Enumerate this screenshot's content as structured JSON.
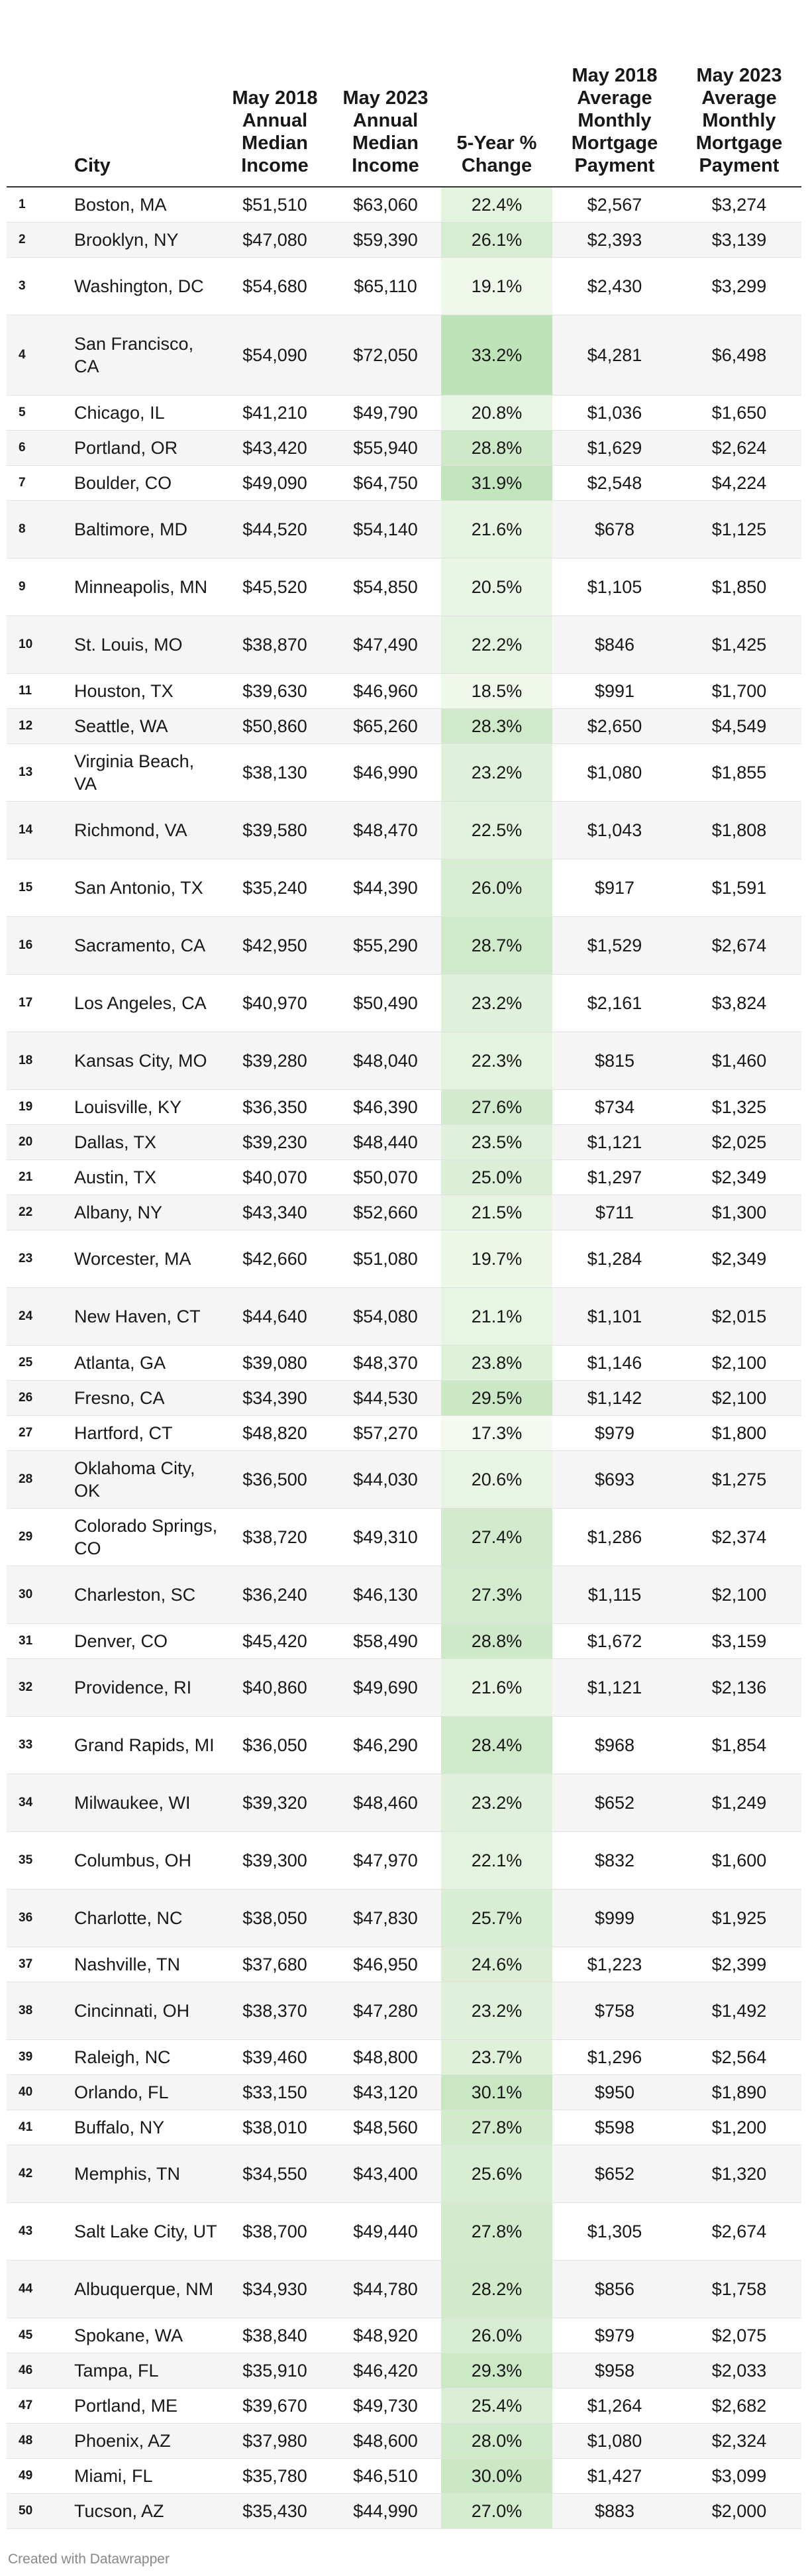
{
  "headers": {
    "rank": "",
    "city": "City",
    "income_2018": "May 2018 Annual Median Income",
    "income_2023": "May 2023 Annual Median Income",
    "change": "5-Year % Change",
    "mortgage_2018": "May 2018 Average Monthly Mortgage Payment",
    "mortgage_2023": "May 2023 Average Monthly Mortgage Payment"
  },
  "colors": {
    "heat_low": "#f4faf0",
    "heat_high": "#bfe3b8",
    "row_stripe": "#f5f5f5",
    "header_rule": "#333333"
  },
  "rows": [
    {
      "rank": "1",
      "city": "Boston, MA",
      "income_2018": "$51,510",
      "income_2023": "$63,060",
      "change": "22.4%",
      "change_value": 22.4,
      "mortgage_2018": "$2,567",
      "mortgage_2023": "$3,274"
    },
    {
      "rank": "2",
      "city": "Brooklyn, NY",
      "income_2018": "$47,080",
      "income_2023": "$59,390",
      "change": "26.1%",
      "change_value": 26.1,
      "mortgage_2018": "$2,393",
      "mortgage_2023": "$3,139"
    },
    {
      "rank": "3",
      "city": "Washington, DC",
      "income_2018": "$54,680",
      "income_2023": "$65,110",
      "change": "19.1%",
      "change_value": 19.1,
      "mortgage_2018": "$2,430",
      "mortgage_2023": "$3,299"
    },
    {
      "rank": "4",
      "city": "San Francisco, CA",
      "income_2018": "$54,090",
      "income_2023": "$72,050",
      "change": "33.2%",
      "change_value": 33.2,
      "mortgage_2018": "$4,281",
      "mortgage_2023": "$6,498"
    },
    {
      "rank": "5",
      "city": "Chicago, IL",
      "income_2018": "$41,210",
      "income_2023": "$49,790",
      "change": "20.8%",
      "change_value": 20.8,
      "mortgage_2018": "$1,036",
      "mortgage_2023": "$1,650"
    },
    {
      "rank": "6",
      "city": "Portland, OR",
      "income_2018": "$43,420",
      "income_2023": "$55,940",
      "change": "28.8%",
      "change_value": 28.8,
      "mortgage_2018": "$1,629",
      "mortgage_2023": "$2,624"
    },
    {
      "rank": "7",
      "city": "Boulder, CO",
      "income_2018": "$49,090",
      "income_2023": "$64,750",
      "change": "31.9%",
      "change_value": 31.9,
      "mortgage_2018": "$2,548",
      "mortgage_2023": "$4,224"
    },
    {
      "rank": "8",
      "city": "Baltimore, MD",
      "income_2018": "$44,520",
      "income_2023": "$54,140",
      "change": "21.6%",
      "change_value": 21.6,
      "mortgage_2018": "$678",
      "mortgage_2023": "$1,125"
    },
    {
      "rank": "9",
      "city": "Minneapolis, MN",
      "income_2018": "$45,520",
      "income_2023": "$54,850",
      "change": "20.5%",
      "change_value": 20.5,
      "mortgage_2018": "$1,105",
      "mortgage_2023": "$1,850"
    },
    {
      "rank": "10",
      "city": "St. Louis, MO",
      "income_2018": "$38,870",
      "income_2023": "$47,490",
      "change": "22.2%",
      "change_value": 22.2,
      "mortgage_2018": "$846",
      "mortgage_2023": "$1,425"
    },
    {
      "rank": "11",
      "city": "Houston, TX",
      "income_2018": "$39,630",
      "income_2023": "$46,960",
      "change": "18.5%",
      "change_value": 18.5,
      "mortgage_2018": "$991",
      "mortgage_2023": "$1,700"
    },
    {
      "rank": "12",
      "city": "Seattle, WA",
      "income_2018": "$50,860",
      "income_2023": "$65,260",
      "change": "28.3%",
      "change_value": 28.3,
      "mortgage_2018": "$2,650",
      "mortgage_2023": "$4,549"
    },
    {
      "rank": "13",
      "city": "Virginia Beach, VA",
      "income_2018": "$38,130",
      "income_2023": "$46,990",
      "change": "23.2%",
      "change_value": 23.2,
      "mortgage_2018": "$1,080",
      "mortgage_2023": "$1,855"
    },
    {
      "rank": "14",
      "city": "Richmond, VA",
      "income_2018": "$39,580",
      "income_2023": "$48,470",
      "change": "22.5%",
      "change_value": 22.5,
      "mortgage_2018": "$1,043",
      "mortgage_2023": "$1,808"
    },
    {
      "rank": "15",
      "city": "San Antonio, TX",
      "income_2018": "$35,240",
      "income_2023": "$44,390",
      "change": "26.0%",
      "change_value": 26.0,
      "mortgage_2018": "$917",
      "mortgage_2023": "$1,591"
    },
    {
      "rank": "16",
      "city": "Sacramento, CA",
      "income_2018": "$42,950",
      "income_2023": "$55,290",
      "change": "28.7%",
      "change_value": 28.7,
      "mortgage_2018": "$1,529",
      "mortgage_2023": "$2,674"
    },
    {
      "rank": "17",
      "city": "Los Angeles, CA",
      "income_2018": "$40,970",
      "income_2023": "$50,490",
      "change": "23.2%",
      "change_value": 23.2,
      "mortgage_2018": "$2,161",
      "mortgage_2023": "$3,824"
    },
    {
      "rank": "18",
      "city": "Kansas City, MO",
      "income_2018": "$39,280",
      "income_2023": "$48,040",
      "change": "22.3%",
      "change_value": 22.3,
      "mortgage_2018": "$815",
      "mortgage_2023": "$1,460"
    },
    {
      "rank": "19",
      "city": "Louisville, KY",
      "income_2018": "$36,350",
      "income_2023": "$46,390",
      "change": "27.6%",
      "change_value": 27.6,
      "mortgage_2018": "$734",
      "mortgage_2023": "$1,325"
    },
    {
      "rank": "20",
      "city": "Dallas, TX",
      "income_2018": "$39,230",
      "income_2023": "$48,440",
      "change": "23.5%",
      "change_value": 23.5,
      "mortgage_2018": "$1,121",
      "mortgage_2023": "$2,025"
    },
    {
      "rank": "21",
      "city": "Austin, TX",
      "income_2018": "$40,070",
      "income_2023": "$50,070",
      "change": "25.0%",
      "change_value": 25.0,
      "mortgage_2018": "$1,297",
      "mortgage_2023": "$2,349"
    },
    {
      "rank": "22",
      "city": "Albany, NY",
      "income_2018": "$43,340",
      "income_2023": "$52,660",
      "change": "21.5%",
      "change_value": 21.5,
      "mortgage_2018": "$711",
      "mortgage_2023": "$1,300"
    },
    {
      "rank": "23",
      "city": "Worcester, MA",
      "income_2018": "$42,660",
      "income_2023": "$51,080",
      "change": "19.7%",
      "change_value": 19.7,
      "mortgage_2018": "$1,284",
      "mortgage_2023": "$2,349"
    },
    {
      "rank": "24",
      "city": "New Haven, CT",
      "income_2018": "$44,640",
      "income_2023": "$54,080",
      "change": "21.1%",
      "change_value": 21.1,
      "mortgage_2018": "$1,101",
      "mortgage_2023": "$2,015"
    },
    {
      "rank": "25",
      "city": "Atlanta, GA",
      "income_2018": "$39,080",
      "income_2023": "$48,370",
      "change": "23.8%",
      "change_value": 23.8,
      "mortgage_2018": "$1,146",
      "mortgage_2023": "$2,100"
    },
    {
      "rank": "26",
      "city": "Fresno, CA",
      "income_2018": "$34,390",
      "income_2023": "$44,530",
      "change": "29.5%",
      "change_value": 29.5,
      "mortgage_2018": "$1,142",
      "mortgage_2023": "$2,100"
    },
    {
      "rank": "27",
      "city": "Hartford, CT",
      "income_2018": "$48,820",
      "income_2023": "$57,270",
      "change": "17.3%",
      "change_value": 17.3,
      "mortgage_2018": "$979",
      "mortgage_2023": "$1,800"
    },
    {
      "rank": "28",
      "city": "Oklahoma City, OK",
      "income_2018": "$36,500",
      "income_2023": "$44,030",
      "change": "20.6%",
      "change_value": 20.6,
      "mortgage_2018": "$693",
      "mortgage_2023": "$1,275"
    },
    {
      "rank": "29",
      "city": "Colorado Springs, CO",
      "income_2018": "$38,720",
      "income_2023": "$49,310",
      "change": "27.4%",
      "change_value": 27.4,
      "mortgage_2018": "$1,286",
      "mortgage_2023": "$2,374"
    },
    {
      "rank": "30",
      "city": "Charleston, SC",
      "income_2018": "$36,240",
      "income_2023": "$46,130",
      "change": "27.3%",
      "change_value": 27.3,
      "mortgage_2018": "$1,115",
      "mortgage_2023": "$2,100"
    },
    {
      "rank": "31",
      "city": "Denver, CO",
      "income_2018": "$45,420",
      "income_2023": "$58,490",
      "change": "28.8%",
      "change_value": 28.8,
      "mortgage_2018": "$1,672",
      "mortgage_2023": "$3,159"
    },
    {
      "rank": "32",
      "city": "Providence, RI",
      "income_2018": "$40,860",
      "income_2023": "$49,690",
      "change": "21.6%",
      "change_value": 21.6,
      "mortgage_2018": "$1,121",
      "mortgage_2023": "$2,136"
    },
    {
      "rank": "33",
      "city": "Grand Rapids, MI",
      "income_2018": "$36,050",
      "income_2023": "$46,290",
      "change": "28.4%",
      "change_value": 28.4,
      "mortgage_2018": "$968",
      "mortgage_2023": "$1,854"
    },
    {
      "rank": "34",
      "city": "Milwaukee, WI",
      "income_2018": "$39,320",
      "income_2023": "$48,460",
      "change": "23.2%",
      "change_value": 23.2,
      "mortgage_2018": "$652",
      "mortgage_2023": "$1,249"
    },
    {
      "rank": "35",
      "city": "Columbus, OH",
      "income_2018": "$39,300",
      "income_2023": "$47,970",
      "change": "22.1%",
      "change_value": 22.1,
      "mortgage_2018": "$832",
      "mortgage_2023": "$1,600"
    },
    {
      "rank": "36",
      "city": "Charlotte, NC",
      "income_2018": "$38,050",
      "income_2023": "$47,830",
      "change": "25.7%",
      "change_value": 25.7,
      "mortgage_2018": "$999",
      "mortgage_2023": "$1,925"
    },
    {
      "rank": "37",
      "city": "Nashville, TN",
      "income_2018": "$37,680",
      "income_2023": "$46,950",
      "change": "24.6%",
      "change_value": 24.6,
      "mortgage_2018": "$1,223",
      "mortgage_2023": "$2,399"
    },
    {
      "rank": "38",
      "city": "Cincinnati, OH",
      "income_2018": "$38,370",
      "income_2023": "$47,280",
      "change": "23.2%",
      "change_value": 23.2,
      "mortgage_2018": "$758",
      "mortgage_2023": "$1,492"
    },
    {
      "rank": "39",
      "city": "Raleigh, NC",
      "income_2018": "$39,460",
      "income_2023": "$48,800",
      "change": "23.7%",
      "change_value": 23.7,
      "mortgage_2018": "$1,296",
      "mortgage_2023": "$2,564"
    },
    {
      "rank": "40",
      "city": "Orlando, FL",
      "income_2018": "$33,150",
      "income_2023": "$43,120",
      "change": "30.1%",
      "change_value": 30.1,
      "mortgage_2018": "$950",
      "mortgage_2023": "$1,890"
    },
    {
      "rank": "41",
      "city": "Buffalo, NY",
      "income_2018": "$38,010",
      "income_2023": "$48,560",
      "change": "27.8%",
      "change_value": 27.8,
      "mortgage_2018": "$598",
      "mortgage_2023": "$1,200"
    },
    {
      "rank": "42",
      "city": "Memphis, TN",
      "income_2018": "$34,550",
      "income_2023": "$43,400",
      "change": "25.6%",
      "change_value": 25.6,
      "mortgage_2018": "$652",
      "mortgage_2023": "$1,320"
    },
    {
      "rank": "43",
      "city": "Salt Lake City, UT",
      "income_2018": "$38,700",
      "income_2023": "$49,440",
      "change": "27.8%",
      "change_value": 27.8,
      "mortgage_2018": "$1,305",
      "mortgage_2023": "$2,674"
    },
    {
      "rank": "44",
      "city": "Albuquerque, NM",
      "income_2018": "$34,930",
      "income_2023": "$44,780",
      "change": "28.2%",
      "change_value": 28.2,
      "mortgage_2018": "$856",
      "mortgage_2023": "$1,758"
    },
    {
      "rank": "45",
      "city": "Spokane, WA",
      "income_2018": "$38,840",
      "income_2023": "$48,920",
      "change": "26.0%",
      "change_value": 26.0,
      "mortgage_2018": "$979",
      "mortgage_2023": "$2,075"
    },
    {
      "rank": "46",
      "city": "Tampa, FL",
      "income_2018": "$35,910",
      "income_2023": "$46,420",
      "change": "29.3%",
      "change_value": 29.3,
      "mortgage_2018": "$958",
      "mortgage_2023": "$2,033"
    },
    {
      "rank": "47",
      "city": "Portland, ME",
      "income_2018": "$39,670",
      "income_2023": "$49,730",
      "change": "25.4%",
      "change_value": 25.4,
      "mortgage_2018": "$1,264",
      "mortgage_2023": "$2,682"
    },
    {
      "rank": "48",
      "city": "Phoenix, AZ",
      "income_2018": "$37,980",
      "income_2023": "$48,600",
      "change": "28.0%",
      "change_value": 28.0,
      "mortgage_2018": "$1,080",
      "mortgage_2023": "$2,324"
    },
    {
      "rank": "49",
      "city": "Miami, FL",
      "income_2018": "$35,780",
      "income_2023": "$46,510",
      "change": "30.0%",
      "change_value": 30.0,
      "mortgage_2018": "$1,427",
      "mortgage_2023": "$3,099"
    },
    {
      "rank": "50",
      "city": "Tucson, AZ",
      "income_2018": "$35,430",
      "income_2023": "$44,990",
      "change": "27.0%",
      "change_value": 27.0,
      "mortgage_2018": "$883",
      "mortgage_2023": "$2,000"
    }
  ],
  "footer": "Created with Datawrapper"
}
